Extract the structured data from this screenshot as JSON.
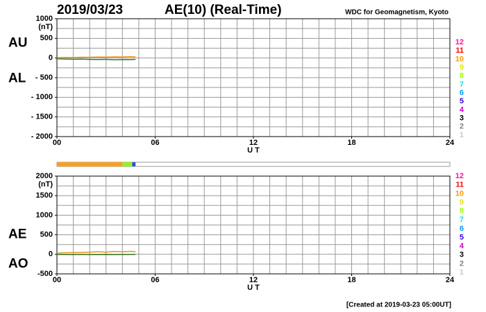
{
  "header": {
    "date": "2019/03/23",
    "title": "AE(10) (Real-Time)",
    "source": "WDC for Geomagnetism, Kyoto"
  },
  "footer": "[Created at 2019-03-23 05:00UT]",
  "station_counts": {
    "labels": [
      "12",
      "11",
      "10",
      "9",
      "8",
      "7",
      "6",
      "5",
      "4",
      "3",
      "2",
      "1"
    ],
    "colors": [
      "#ff1493",
      "#ff0000",
      "#ff9900",
      "#e6e600",
      "#99ff00",
      "#00e6e6",
      "#0099ff",
      "#3300cc",
      "#cc00cc",
      "#000000",
      "#808080",
      "#c8c8c8"
    ]
  },
  "station_bar": {
    "xlim": [
      0,
      24
    ],
    "segments": [
      {
        "start": 0,
        "end": 4,
        "color": "#f5a01e"
      },
      {
        "start": 4,
        "end": 4.6,
        "color": "#99ee22"
      },
      {
        "start": 4.6,
        "end": 4.8,
        "color": "#2255dd"
      }
    ]
  },
  "chart_data": [
    {
      "type": "line",
      "unit": "(nT)",
      "xlabel": "U T",
      "side_labels": [
        "AU",
        "AL"
      ],
      "xlim": [
        0,
        24
      ],
      "xticks": [
        {
          "value": 0,
          "label": "00"
        },
        {
          "value": 6,
          "label": "06"
        },
        12,
        18,
        24
      ],
      "xgrid": [
        1,
        2,
        3,
        4,
        5,
        6,
        7,
        8,
        9,
        10,
        11,
        12,
        13,
        14,
        15,
        16,
        17,
        18,
        19,
        20,
        21,
        22,
        23
      ],
      "ylim": [
        -2000,
        1000
      ],
      "yticks": [
        {
          "value": -2000,
          "label": "- 2000"
        },
        {
          "value": -1500,
          "label": "- 1500"
        },
        {
          "value": -1000,
          "label": "- 1000"
        },
        {
          "value": -500,
          "label": "- 500"
        },
        0,
        500,
        1000
      ],
      "ygrid": [
        -1750,
        -1500,
        -1250,
        -1000,
        -750,
        -500,
        -250,
        0,
        250,
        500,
        750
      ],
      "x": [
        0,
        0.5,
        1,
        1.5,
        2,
        2.5,
        3,
        3.5,
        4,
        4.5,
        4.8
      ],
      "series": [
        {
          "name": "AU",
          "color": "#e8901a",
          "values": [
            10,
            15,
            12,
            20,
            18,
            25,
            22,
            30,
            28,
            35,
            30
          ]
        },
        {
          "name": "AL",
          "color": "#3a7a20",
          "values": [
            -20,
            -25,
            -30,
            -28,
            -35,
            -40,
            -32,
            -45,
            -38,
            -42,
            -35
          ]
        }
      ]
    },
    {
      "type": "line",
      "unit": "(nT)",
      "xlabel": "U T",
      "side_labels": [
        "AE",
        "AO"
      ],
      "xlim": [
        0,
        24
      ],
      "xticks": [
        {
          "value": 0,
          "label": "00"
        },
        {
          "value": 6,
          "label": "06"
        },
        12,
        18,
        24
      ],
      "xgrid": [
        1,
        2,
        3,
        4,
        5,
        6,
        7,
        8,
        9,
        10,
        11,
        12,
        13,
        14,
        15,
        16,
        17,
        18,
        19,
        20,
        21,
        22,
        23
      ],
      "ylim": [
        -500,
        2000
      ],
      "yticks": [
        {
          "value": -500,
          "label": "-500"
        },
        0,
        500,
        1000,
        1500,
        2000
      ],
      "ygrid": [
        -250,
        0,
        250,
        500,
        750,
        1000,
        1250,
        1500,
        1750
      ],
      "x": [
        0,
        0.5,
        1,
        1.5,
        2,
        2.5,
        3,
        3.5,
        4,
        4.5,
        4.8
      ],
      "series": [
        {
          "name": "AE",
          "color": "#e8901a",
          "values": [
            30,
            40,
            42,
            48,
            53,
            65,
            54,
            75,
            66,
            77,
            65
          ]
        },
        {
          "name": "AO",
          "color": "#3a7a20",
          "values": [
            -5,
            -5,
            -9,
            -4,
            -8.5,
            -7.5,
            -5,
            -7.5,
            -5,
            -3.5,
            -2.5
          ]
        }
      ]
    }
  ]
}
